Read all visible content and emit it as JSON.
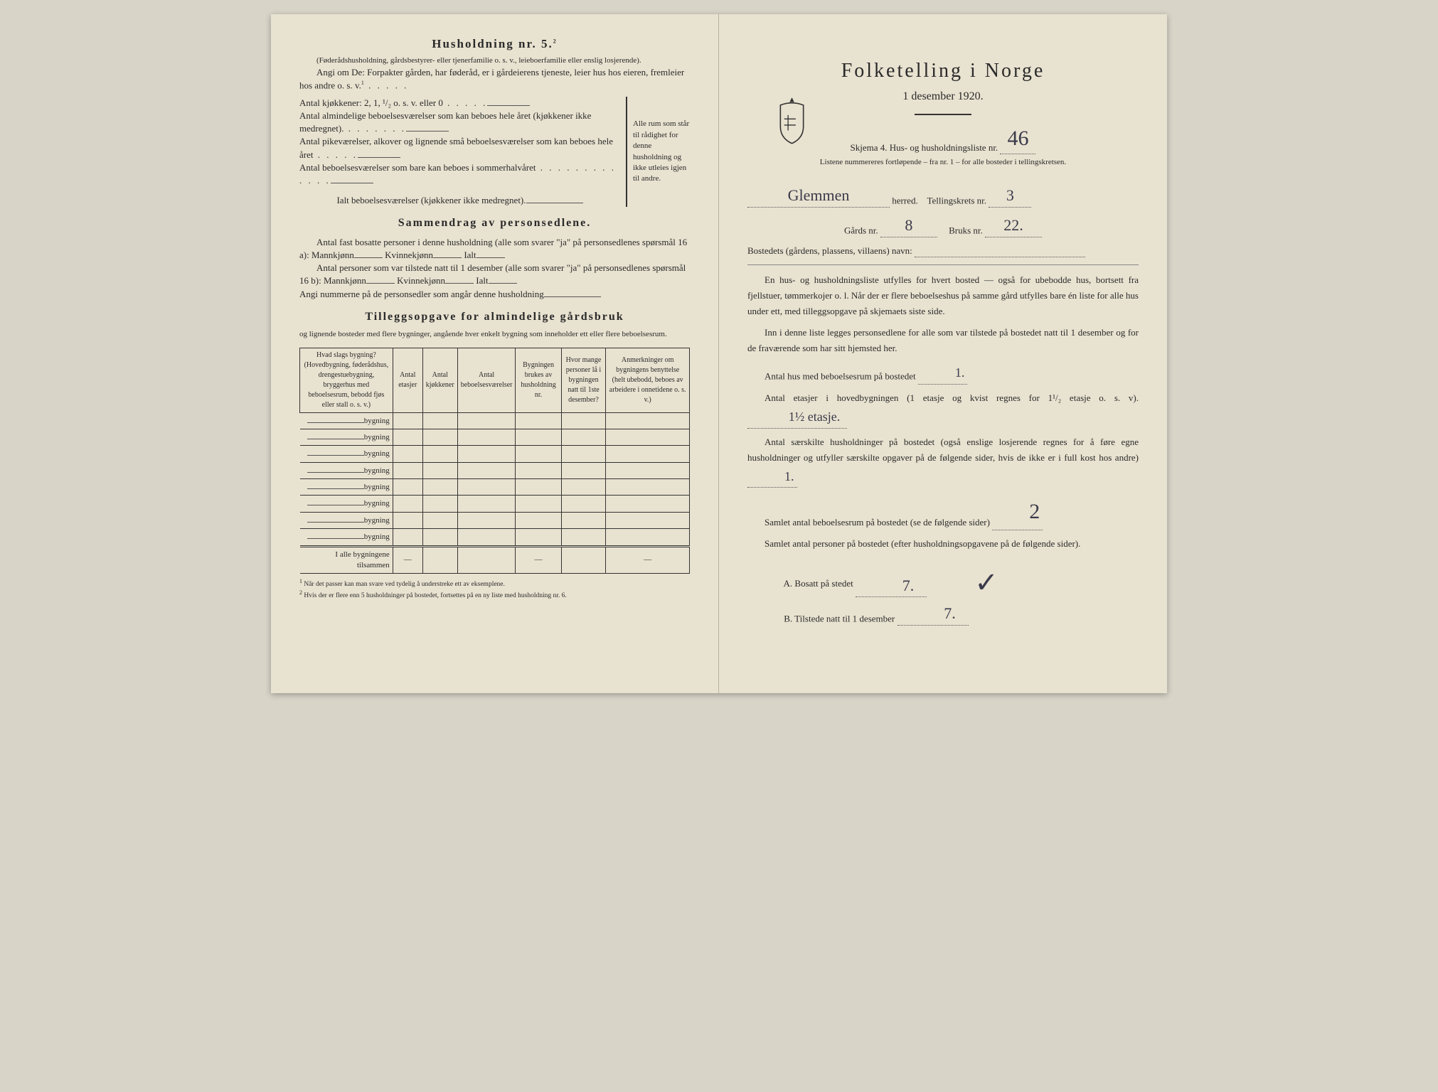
{
  "left": {
    "household_heading": "Husholdning nr. 5.",
    "household_sup": "2",
    "sub1": "(Føderådshusholdning, gårdsbestyrer- eller tjenerfamilie o. s. v., leieboerfamilie eller enslig losjerende).",
    "sub2": "Angi om De: Forpakter gården, har føderåd, er i gårdeierens tjeneste, leier hus hos eieren, fremleier hos andre o. s. v.",
    "sub2_sup": "1",
    "kitchen_line": "Antal kjøkkener: 2, 1, ¹/₂ o. s. v. eller 0",
    "room1": "Antal almindelige beboelsesværelser som kan beboes hele året (kjøkkener ikke medregnet).",
    "room2": "Antal pikeværelser, alkover og lignende små beboelsesværelser som kan beboes hele året",
    "room3": "Antal beboelsesværelser som bare kan beboes i sommerhalvåret",
    "total_rooms": "Ialt beboelsesværelser  (kjøkkener ikke medregnet).",
    "brace_text": "Alle rum som står til rådighet for denne husholdning og ikke utleies igjen til andre.",
    "summary_heading": "Sammendrag av personsedlene.",
    "sum1a": "Antal fast bosatte personer i denne husholdning (alle som svarer \"ja\" på personsedlenes spørsmål 16 a):",
    "sum1b": "Antal personer som var tilstede natt til 1 desember (alle som svarer \"ja\" på personsedlenes spørsmål 16 b):",
    "mann_label": "Mannkjønn",
    "kvinne_label": "Kvinnekjønn",
    "ialt_label": "Ialt",
    "sum_numbers": "Angi nummerne på de personsedler som angår denne husholdning",
    "tillegg_heading": "Tilleggsopgave for almindelige gårdsbruk",
    "tillegg_sub": "og lignende bosteder med flere bygninger, angående hver enkelt bygning som inneholder ett eller flere beboelsesrum.",
    "table": {
      "headers": [
        "Hvad slags bygning?\n(Hovedbygning, føderådshus, drengestuebygning, bryggerhus med beboelsesrum, bebodd fjøs eller stall o. s. v.)",
        "Antal etasjer",
        "Antal kjøkkener",
        "Antal beboelsesværelser",
        "Bygningen brukes av husholdning nr.",
        "Hvor mange personer lå i bygningen natt til 1ste desember?",
        "Anmerkninger om bygningens benyttelse (helt ubebodd, beboes av arbeidere i onnetidene o. s. v.)"
      ],
      "row_label": "bygning",
      "rows_count": 8,
      "total_row": "I alle bygningene tilsammen",
      "dash": "—"
    },
    "footnote1": "Når det passer kan man svare ved tydelig å understreke ett av eksemplene.",
    "footnote2": "Hvis der er flere enn 5 husholdninger på bostedet, fortsettes på en ny liste med husholdning nr. 6."
  },
  "right": {
    "title": "Folketelling i Norge",
    "date": "1 desember 1920.",
    "skjema": "Skjema 4.  Hus- og husholdningsliste nr.",
    "skjema_nr_hw": "46",
    "listene": "Listene nummereres fortløpende – fra nr. 1 – for alle bosteder i tellingskretsen.",
    "herred_hw": "Glemmen",
    "herred_label": "herred.",
    "tellingskrets_label": "Tellingskrets nr.",
    "tellingskrets_hw": "3",
    "gards_label": "Gårds nr.",
    "gards_hw": "8",
    "bruks_label": "Bruks nr.",
    "bruks_hw": "22.",
    "bosted_label": "Bostedets (gårdens, plassens, villaens) navn:",
    "para1": "En hus- og husholdningsliste utfylles for hvert bosted — også for ubebodde hus, bortsett fra fjellstuer, tømmerkojer o. l.  Når der er flere beboelseshus på samme gård utfylles bare én liste for alle hus under ett, med tilleggsopgave på skjemaets siste side.",
    "para2": "Inn i denne liste legges personsedlene for alle som var tilstede på bostedet natt til 1 desember og for de fraværende som har sitt hjemsted her.",
    "q1": "Antal hus med beboelsesrum på bostedet",
    "q1_hw": "1.",
    "q2a": "Antal etasjer i hovedbygningen (1 etasje og kvist regnes for 1¹/₂ etasje o. s. v).",
    "q2_hw": "1½ etasje.",
    "q3": "Antal særskilte husholdninger på bostedet (også enslige losjerende regnes for å føre egne husholdninger og utfyller særskilte opgaver på de følgende sider, hvis de ikke er i full kost hos andre)",
    "q3_hw": "1.",
    "q4": "Samlet antal beboelsesrum på bostedet (se de følgende sider)",
    "q4_hw": "2",
    "q5": "Samlet antal personer på bostedet (efter husholdningsopgavene på de følgende sider).",
    "qA_label": "A.  Bosatt på stedet",
    "qA_hw": "7.",
    "qB_label": "B.  Tilstede natt til 1 desember",
    "qB_hw": "7."
  }
}
